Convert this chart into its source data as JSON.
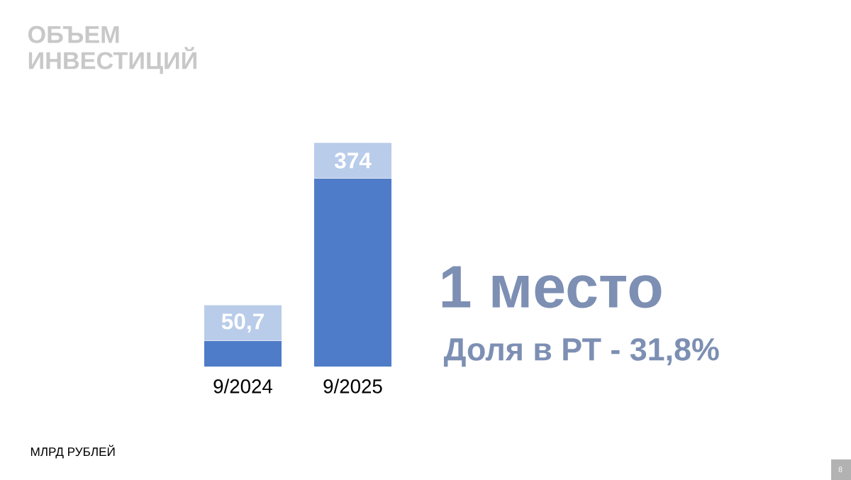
{
  "chart_data": {
    "type": "bar",
    "title": "ОБЪЕМ ИНВЕСТИЦИЙ",
    "categories": [
      "9/2024",
      "9/2025"
    ],
    "values": [
      50.7,
      374
    ],
    "value_labels": [
      "50,7",
      "374"
    ],
    "color": "#4f7cc8",
    "annotations": [
      "1 место",
      "Доля в РТ -  31,8%",
      "МЛРД РУБЛЕЙ",
      "8"
    ]
  }
}
